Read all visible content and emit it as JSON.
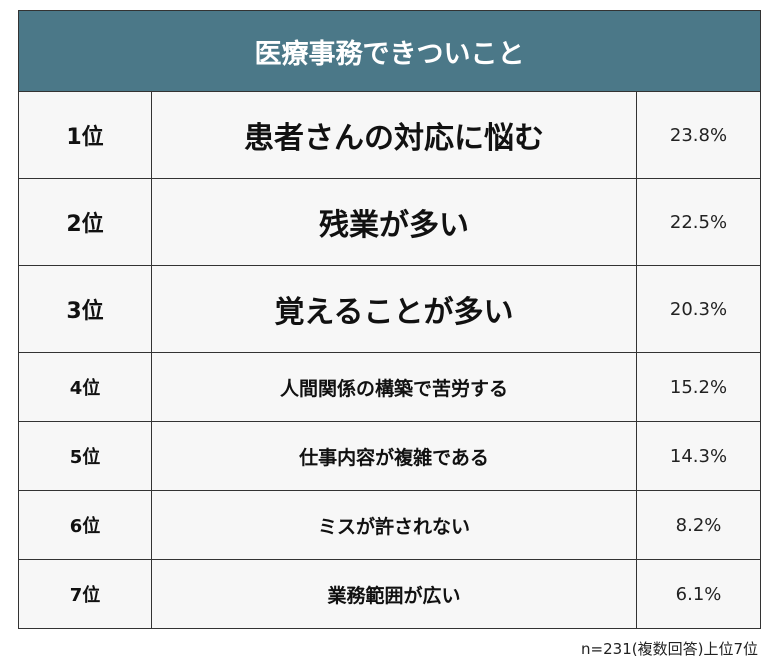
{
  "chart_data": {
    "type": "table",
    "title": "医療事務できついこと",
    "rows": [
      {
        "rank": "1位",
        "item": "患者さんの対応に悩む",
        "percent": "23.8%"
      },
      {
        "rank": "2位",
        "item": "残業が多い",
        "percent": "22.5%"
      },
      {
        "rank": "3位",
        "item": "覚えることが多い",
        "percent": "20.3%"
      },
      {
        "rank": "4位",
        "item": "人間関係の構築で苦労する",
        "percent": "15.2%"
      },
      {
        "rank": "5位",
        "item": "仕事内容が複雑である",
        "percent": "14.3%"
      },
      {
        "rank": "6位",
        "item": "ミスが許されない",
        "percent": "8.2%"
      },
      {
        "rank": "7位",
        "item": "業務範囲が広い",
        "percent": "6.1%"
      }
    ],
    "note": "n=231(複数回答)上位7位"
  },
  "colors": {
    "header": "#4b7888",
    "cell": "#f7f7f7"
  }
}
